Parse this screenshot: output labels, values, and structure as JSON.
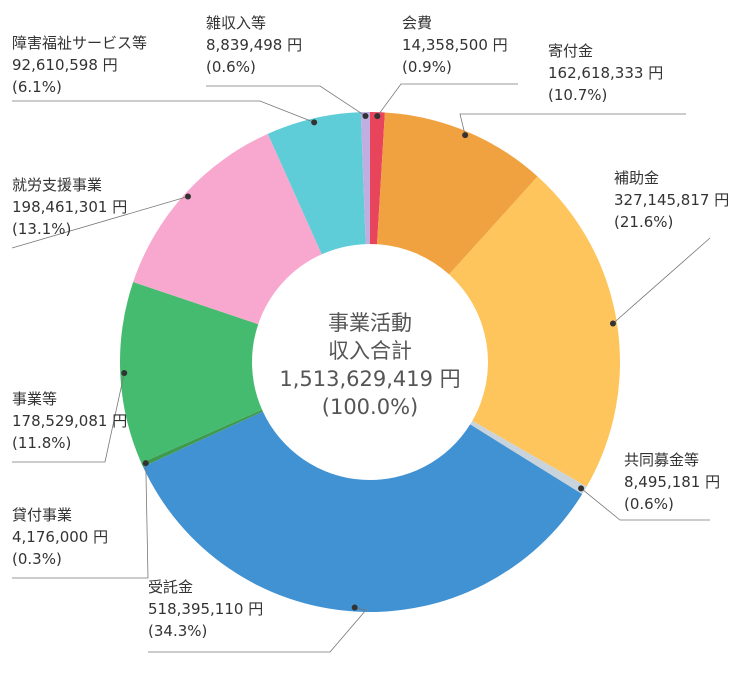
{
  "chart_data": {
    "type": "pie",
    "variant": "donut",
    "center_label": {
      "line1": "事業活動",
      "line2": "収入合計",
      "amount": "1,513,629,419 円",
      "percent": "(100.0%)"
    },
    "slices": [
      {
        "name": "会費",
        "value": 14358500,
        "value_label": "14,358,500 円",
        "percent": 0.9,
        "percent_label": "(0.9%)",
        "color": "#e8455c"
      },
      {
        "name": "寄付金",
        "value": 162618333,
        "value_label": "162,618,333 円",
        "percent": 10.7,
        "percent_label": "(10.7%)",
        "color": "#f0a240"
      },
      {
        "name": "補助金",
        "value": 327145817,
        "value_label": "327,145,817 円",
        "percent": 21.6,
        "percent_label": "(21.6%)",
        "color": "#fdc55b"
      },
      {
        "name": "共同募金等",
        "value": 8495181,
        "value_label": "8,495,181 円",
        "percent": 0.6,
        "percent_label": "(0.6%)",
        "color": "#c9d3dc"
      },
      {
        "name": "受託金",
        "value": 518395110,
        "value_label": "518,395,110 円",
        "percent": 34.3,
        "percent_label": "(34.3%)",
        "color": "#4192d3"
      },
      {
        "name": "貸付事業",
        "value": 4176000,
        "value_label": "4,176,000 円",
        "percent": 0.3,
        "percent_label": "(0.3%)",
        "color": "#3d9a4f"
      },
      {
        "name": "事業等",
        "value": 178529081,
        "value_label": "178,529,081 円",
        "percent": 11.8,
        "percent_label": "(11.8%)",
        "color": "#44bb6e"
      },
      {
        "name": "就労支援事業",
        "value": 198461301,
        "value_label": "198,461,301 円",
        "percent": 13.1,
        "percent_label": "(13.1%)",
        "color": "#f8a8cf"
      },
      {
        "name": "障害福祉サービス等",
        "value": 92610598,
        "value_label": "92,610,598 円",
        "percent": 6.1,
        "percent_label": "(6.1%)",
        "color": "#5fcdd8"
      },
      {
        "name": "雑収入等",
        "value": 8839498,
        "value_label": "8,839,498 円",
        "percent": 0.6,
        "percent_label": "(0.6%)",
        "color": "#c0aee0"
      }
    ]
  }
}
